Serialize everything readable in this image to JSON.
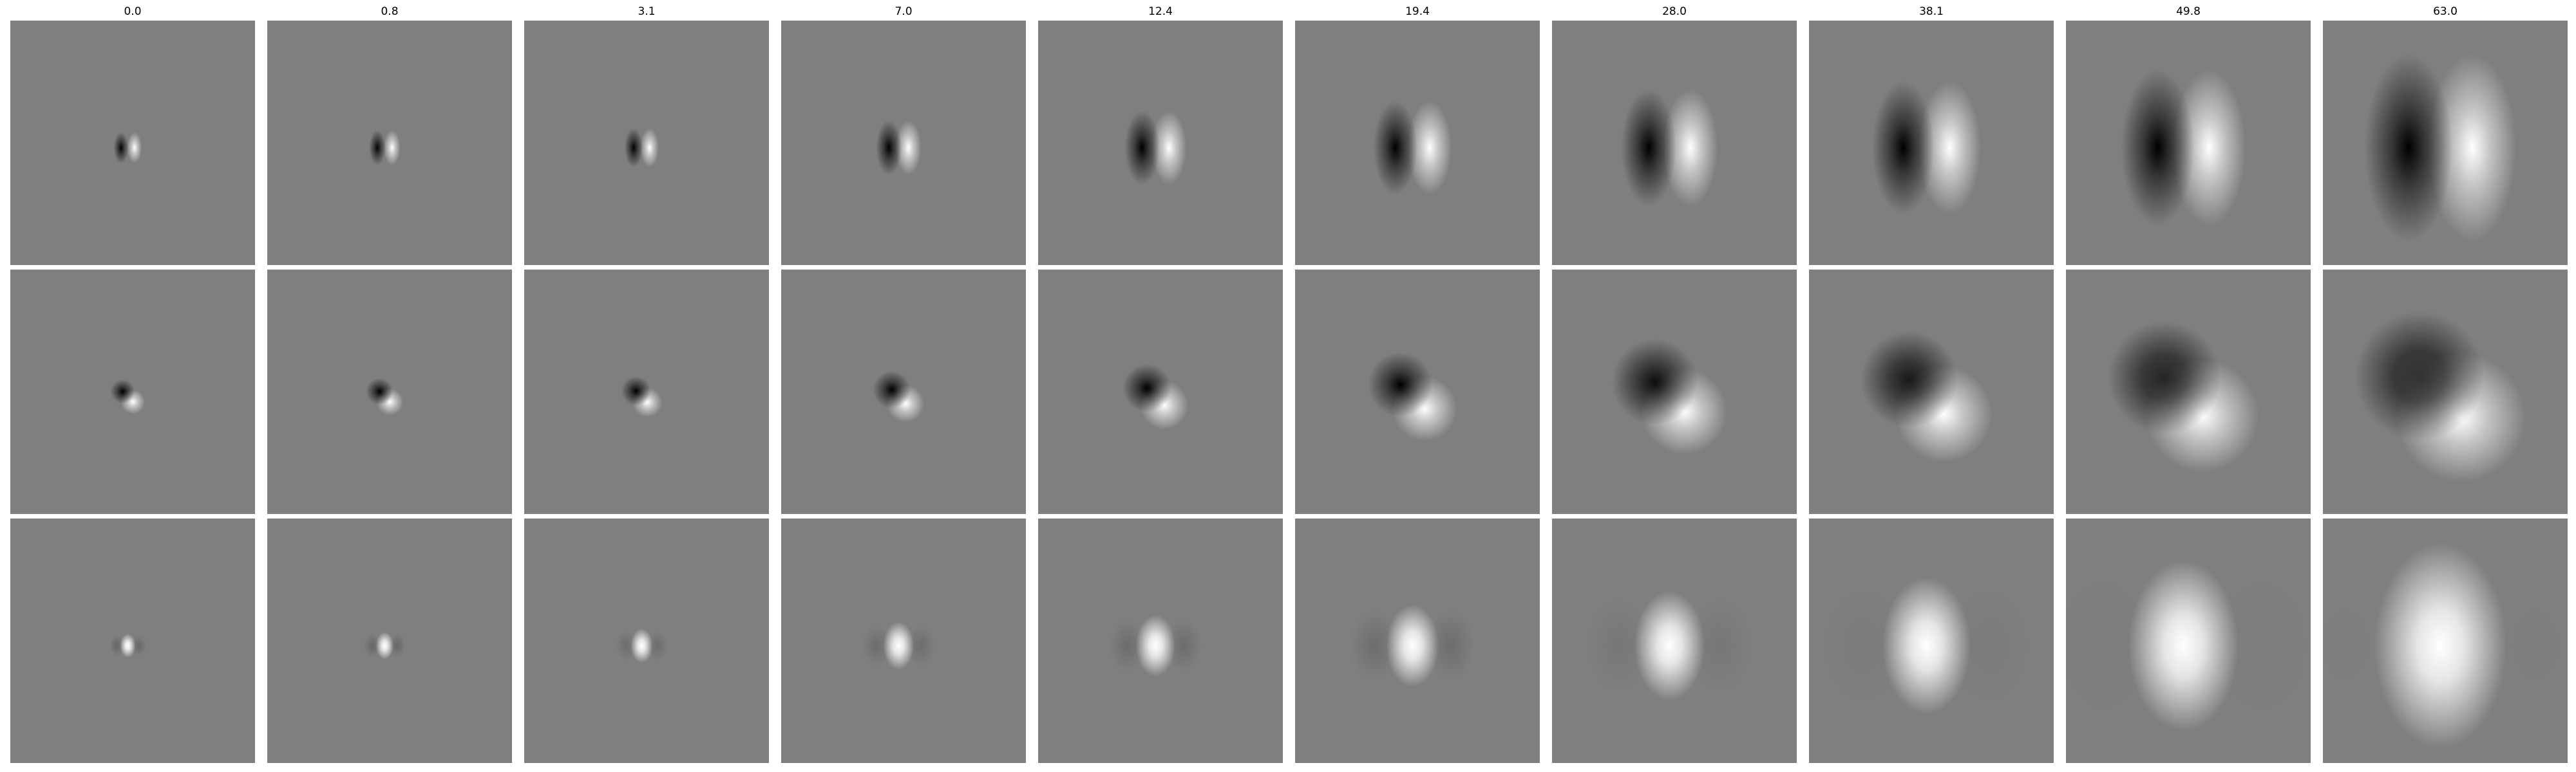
{
  "column_labels": [
    "0.0",
    "0.8",
    "3.1",
    "7.0",
    "12.4",
    "19.4",
    "28.0",
    "38.1",
    "49.8",
    "63.0"
  ],
  "background_gray": "#7f7f7f",
  "rows": [
    {
      "pattern": "vertical dark-left / bright-right pair, broadening with column",
      "tiles": [
        {
          "spread": 0.04,
          "angle": 0,
          "lobe_sep": 0.055,
          "darkness": 1.0
        },
        {
          "spread": 0.045,
          "angle": 0,
          "lobe_sep": 0.06,
          "darkness": 1.0
        },
        {
          "spread": 0.05,
          "angle": 0,
          "lobe_sep": 0.065,
          "darkness": 1.0
        },
        {
          "spread": 0.07,
          "angle": 0,
          "lobe_sep": 0.08,
          "darkness": 1.0
        },
        {
          "spread": 0.095,
          "angle": 0,
          "lobe_sep": 0.11,
          "darkness": 1.0
        },
        {
          "spread": 0.12,
          "angle": 0,
          "lobe_sep": 0.14,
          "darkness": 1.0
        },
        {
          "spread": 0.15,
          "angle": 0,
          "lobe_sep": 0.17,
          "darkness": 1.0
        },
        {
          "spread": 0.17,
          "angle": 0,
          "lobe_sep": 0.19,
          "darkness": 1.0
        },
        {
          "spread": 0.2,
          "angle": 0,
          "lobe_sep": 0.21,
          "darkness": 1.0
        },
        {
          "spread": 0.24,
          "angle": 0,
          "lobe_sep": 0.26,
          "darkness": 1.0
        }
      ]
    },
    {
      "pattern": "diagonal dark / bright pair oriented top-left to bottom-right",
      "tiles": [
        {
          "spread": 0.045,
          "angle": 45,
          "lobe_sep": 0.06,
          "darkness": 1.0
        },
        {
          "spread": 0.05,
          "angle": 45,
          "lobe_sep": 0.06,
          "darkness": 1.0
        },
        {
          "spread": 0.055,
          "angle": 45,
          "lobe_sep": 0.065,
          "darkness": 1.0
        },
        {
          "spread": 0.07,
          "angle": 45,
          "lobe_sep": 0.08,
          "darkness": 1.0
        },
        {
          "spread": 0.09,
          "angle": 45,
          "lobe_sep": 0.1,
          "darkness": 1.0
        },
        {
          "spread": 0.12,
          "angle": 45,
          "lobe_sep": 0.14,
          "darkness": 1.0
        },
        {
          "spread": 0.16,
          "angle": 45,
          "lobe_sep": 0.17,
          "darkness": 0.9
        },
        {
          "spread": 0.18,
          "angle": 45,
          "lobe_sep": 0.2,
          "darkness": 0.8
        },
        {
          "spread": 0.21,
          "angle": 45,
          "lobe_sep": 0.22,
          "darkness": 0.7
        },
        {
          "spread": 0.24,
          "angle": 45,
          "lobe_sep": 0.24,
          "darkness": 0.6
        }
      ]
    },
    {
      "pattern": "central bright blob with faint dark flanks, broadening with column",
      "tiles": [
        {
          "spread": 0.035,
          "angle": 0,
          "lobe_sep": 0.0,
          "darkness": 0.35
        },
        {
          "spread": 0.04,
          "angle": 0,
          "lobe_sep": 0.0,
          "darkness": 0.35
        },
        {
          "spread": 0.05,
          "angle": 0,
          "lobe_sep": 0.0,
          "darkness": 0.3
        },
        {
          "spread": 0.07,
          "angle": 0,
          "lobe_sep": 0.0,
          "darkness": 0.3
        },
        {
          "spread": 0.09,
          "angle": 0,
          "lobe_sep": 0.0,
          "darkness": 0.3
        },
        {
          "spread": 0.12,
          "angle": 0,
          "lobe_sep": 0.0,
          "darkness": 0.3
        },
        {
          "spread": 0.16,
          "angle": 0,
          "lobe_sep": 0.0,
          "darkness": 0.2
        },
        {
          "spread": 0.2,
          "angle": 0,
          "lobe_sep": 0.0,
          "darkness": 0.15
        },
        {
          "spread": 0.25,
          "angle": 0,
          "lobe_sep": 0.0,
          "darkness": 0.1
        },
        {
          "spread": 0.3,
          "angle": 0,
          "lobe_sep": 0.0,
          "darkness": 0.05
        }
      ]
    }
  ]
}
